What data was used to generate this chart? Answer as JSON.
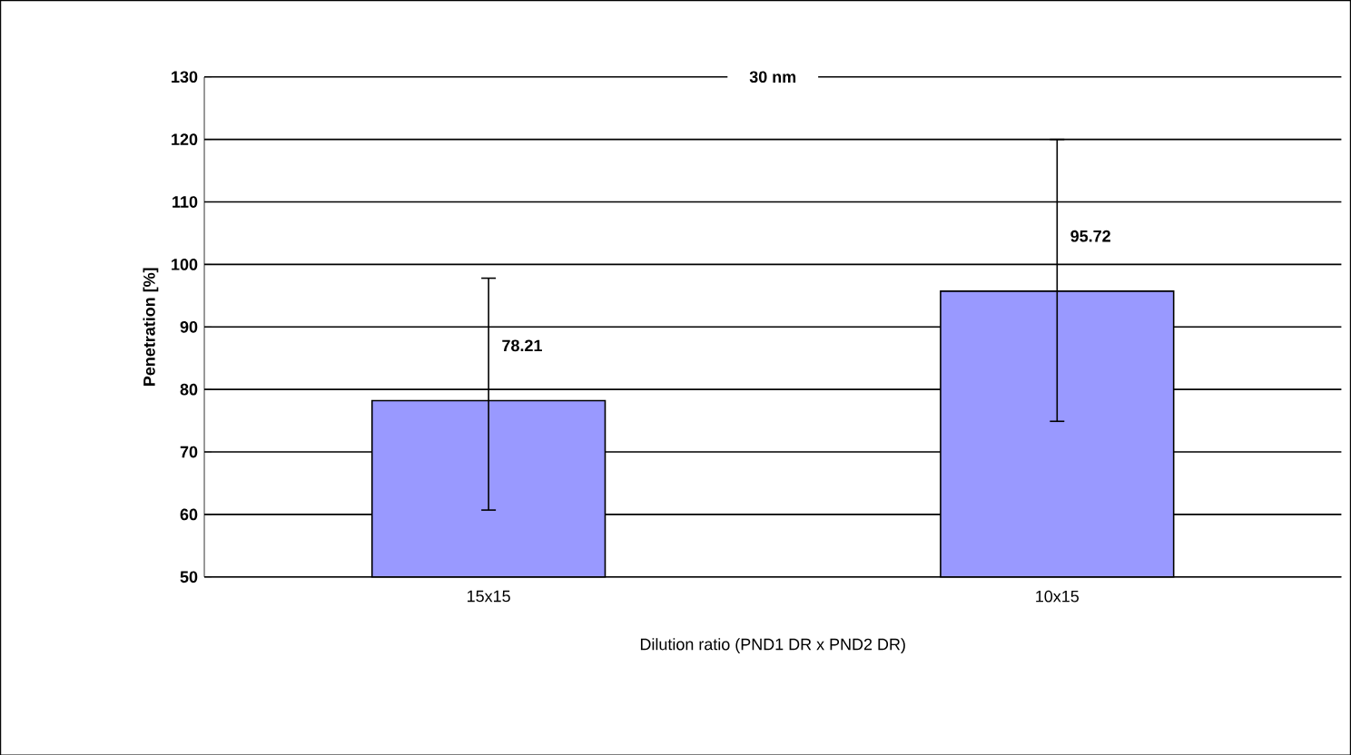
{
  "chart_data": {
    "type": "bar",
    "title": "30 nm",
    "xlabel": "Dilution ratio (PND1 DR x PND2 DR)",
    "ylabel": "Penetration [%]",
    "categories": [
      "15x15",
      "10x15"
    ],
    "values": [
      78.21,
      95.72
    ],
    "errors": [
      [
        60.7,
        97.8
      ],
      [
        74.9,
        120
      ]
    ],
    "color": "#9999ff",
    "data_labels": true,
    "grid": "y",
    "ylim": [
      50,
      130
    ],
    "yticks": [
      50,
      60,
      70,
      80,
      90,
      100,
      110,
      120,
      130
    ]
  }
}
